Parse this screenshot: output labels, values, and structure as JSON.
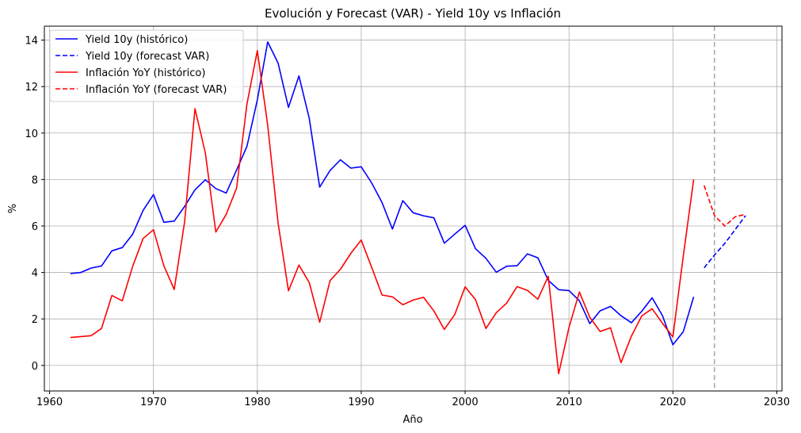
{
  "chart_data": {
    "type": "line",
    "title": "Evolución y Forecast (VAR) - Yield 10y vs Inflación",
    "xlabel": "Año",
    "ylabel": "%",
    "xlim": [
      1959.5,
      2030.5
    ],
    "ylim": [
      -1.1,
      14.6
    ],
    "xticks": [
      1960,
      1970,
      1980,
      1990,
      2000,
      2010,
      2020,
      2030
    ],
    "yticks": [
      0,
      2,
      4,
      6,
      8,
      10,
      12,
      14
    ],
    "grid": true,
    "legend_position": "top-left",
    "vline": {
      "x": 2024,
      "color": "#aaaaaa",
      "style": "dashed"
    },
    "series": [
      {
        "name": "Yield 10y (histórico)",
        "color": "#0000ff",
        "style": "solid",
        "x": [
          1962,
          1963,
          1964,
          1965,
          1966,
          1967,
          1968,
          1969,
          1970,
          1971,
          1972,
          1973,
          1974,
          1975,
          1976,
          1977,
          1978,
          1979,
          1980,
          1981,
          1982,
          1983,
          1984,
          1985,
          1986,
          1987,
          1988,
          1989,
          1990,
          1991,
          1992,
          1993,
          1994,
          1995,
          1996,
          1997,
          1998,
          1999,
          2000,
          2001,
          2002,
          2003,
          2004,
          2005,
          2006,
          2007,
          2008,
          2009,
          2010,
          2011,
          2012,
          2013,
          2014,
          2015,
          2016,
          2017,
          2018,
          2019,
          2020,
          2021,
          2022
        ],
        "values": [
          3.95,
          4.0,
          4.19,
          4.28,
          4.93,
          5.07,
          5.65,
          6.67,
          7.35,
          6.16,
          6.21,
          6.84,
          7.56,
          7.99,
          7.61,
          7.42,
          8.41,
          9.43,
          11.43,
          13.92,
          13.01,
          11.1,
          12.46,
          10.62,
          7.67,
          8.39,
          8.85,
          8.49,
          8.55,
          7.86,
          7.01,
          5.87,
          7.09,
          6.57,
          6.44,
          6.35,
          5.26,
          5.65,
          6.03,
          5.02,
          4.61,
          4.01,
          4.27,
          4.29,
          4.8,
          4.63,
          3.66,
          3.26,
          3.22,
          2.78,
          1.8,
          2.35,
          2.54,
          2.14,
          1.84,
          2.33,
          2.91,
          2.14,
          0.89,
          1.45,
          2.95
        ]
      },
      {
        "name": "Yield 10y (forecast VAR)",
        "color": "#0000ff",
        "style": "dashed",
        "x": [
          2023,
          2024,
          2025,
          2026,
          2027
        ],
        "values": [
          4.2,
          4.75,
          5.25,
          5.85,
          6.45
        ]
      },
      {
        "name": "Inflación YoY (histórico)",
        "color": "#ff0000",
        "style": "solid",
        "x": [
          1962,
          1963,
          1964,
          1965,
          1966,
          1967,
          1968,
          1969,
          1970,
          1971,
          1972,
          1973,
          1974,
          1975,
          1976,
          1977,
          1978,
          1979,
          1980,
          1981,
          1982,
          1983,
          1984,
          1985,
          1986,
          1987,
          1988,
          1989,
          1990,
          1991,
          1992,
          1993,
          1994,
          1995,
          1996,
          1997,
          1998,
          1999,
          2000,
          2001,
          2002,
          2003,
          2004,
          2005,
          2006,
          2007,
          2008,
          2009,
          2010,
          2011,
          2012,
          2013,
          2014,
          2015,
          2016,
          2017,
          2018,
          2019,
          2020,
          2021,
          2022
        ],
        "values": [
          1.2,
          1.24,
          1.28,
          1.59,
          3.01,
          2.78,
          4.27,
          5.46,
          5.84,
          4.29,
          3.27,
          6.18,
          11.05,
          9.14,
          5.74,
          6.5,
          7.63,
          11.25,
          13.55,
          10.33,
          6.13,
          3.21,
          4.32,
          3.56,
          1.86,
          3.65,
          4.14,
          4.82,
          5.4,
          4.23,
          3.03,
          2.95,
          2.61,
          2.81,
          2.93,
          2.34,
          1.55,
          2.19,
          3.38,
          2.83,
          1.59,
          2.27,
          2.68,
          3.39,
          3.23,
          2.85,
          3.84,
          -0.36,
          1.64,
          3.16,
          2.07,
          1.46,
          1.62,
          0.12,
          1.26,
          2.13,
          2.44,
          1.81,
          1.23,
          4.7,
          8.0
        ]
      },
      {
        "name": "Inflación YoY (forecast VAR)",
        "color": "#ff0000",
        "style": "dashed",
        "x": [
          2023,
          2024,
          2025,
          2026,
          2027
        ],
        "values": [
          7.75,
          6.45,
          6.0,
          6.4,
          6.5
        ]
      }
    ]
  }
}
